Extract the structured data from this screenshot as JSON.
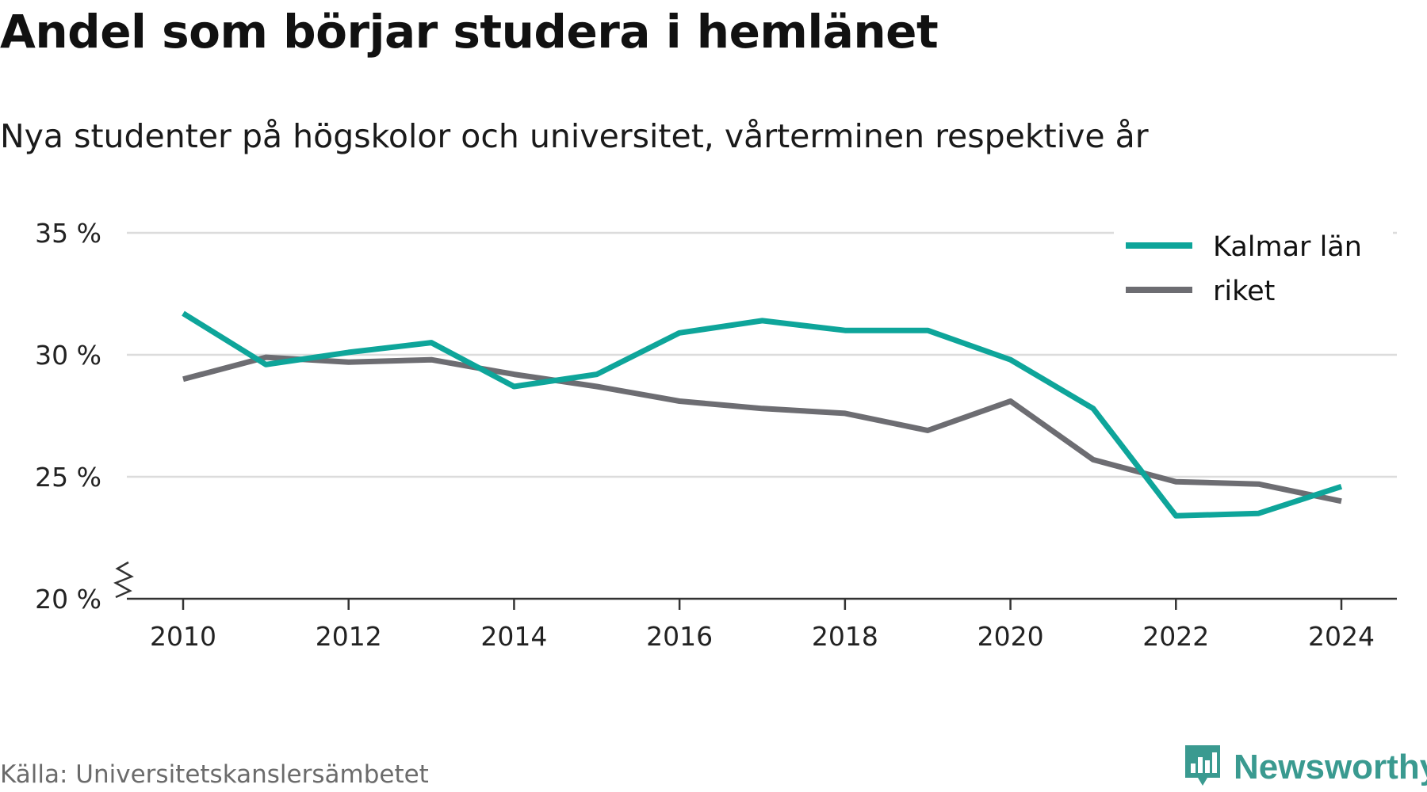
{
  "title": "Andel som börjar studera i hemlänet",
  "subtitle": "Nya studenter på högskolor och universitet, vårterminen respektive år",
  "source": "Källa: Universitetskanslersämbetet",
  "brand": {
    "name": "Newsworthy",
    "icon": "newsworthy-logo-icon",
    "color": "#3a9a90"
  },
  "chart_data": {
    "type": "line",
    "x": [
      2010,
      2011,
      2012,
      2013,
      2014,
      2015,
      2016,
      2017,
      2018,
      2019,
      2020,
      2021,
      2022,
      2023,
      2024
    ],
    "x_ticks": [
      2010,
      2012,
      2014,
      2016,
      2018,
      2020,
      2022,
      2024
    ],
    "x_tick_labels": [
      "2010",
      "2012",
      "2014",
      "2016",
      "2018",
      "2020",
      "2022",
      "2024"
    ],
    "y_ticks": [
      20,
      25,
      30,
      35
    ],
    "y_tick_labels": [
      "20 %",
      "25 %",
      "30 %",
      "35 %"
    ],
    "ylim": [
      20,
      35
    ],
    "y_axis_break": true,
    "grid": true,
    "legend_position": "top-right",
    "series": [
      {
        "name": "Kalmar län",
        "color": "#0ea59a",
        "values": [
          31.7,
          29.6,
          30.1,
          30.5,
          28.7,
          29.2,
          30.9,
          31.4,
          31.0,
          31.0,
          29.8,
          27.8,
          23.4,
          23.5,
          24.6
        ]
      },
      {
        "name": "riket",
        "color": "#6d6d72",
        "values": [
          29.0,
          29.9,
          29.7,
          29.8,
          29.2,
          28.7,
          28.1,
          27.8,
          27.6,
          26.9,
          28.1,
          25.7,
          24.8,
          24.7,
          24.0
        ]
      }
    ]
  }
}
